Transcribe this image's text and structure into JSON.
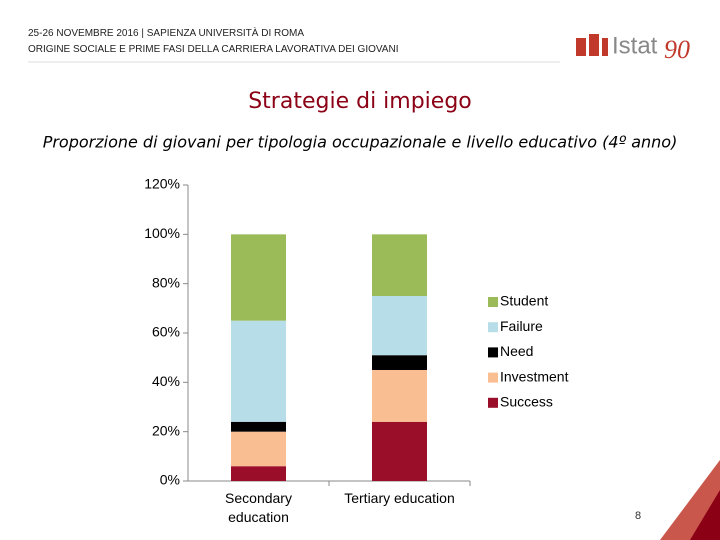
{
  "header": {
    "line1": "25-26 NOVEMBRE 2016 | SAPIENZA UNIVERSITÀ DI ROMA",
    "line2": "ORIGINE SOCIALE E PRIME FASI DELLA CARRIERA LAVORATIVA DEI GIOVANI"
  },
  "logo": {
    "text": "Istat",
    "number": "90"
  },
  "page_number": "8",
  "chart_data": {
    "type": "stacked_bar",
    "title": "Strategie di impiego",
    "subtitle": "Proporzione di giovani per tipologia occupazionale e livello educativo (4º anno)",
    "categories": [
      "Secondary education",
      "Tertiary education"
    ],
    "series": [
      {
        "name": "Success",
        "color": "#9b0e2a",
        "values": [
          6,
          24
        ]
      },
      {
        "name": "Investment",
        "color": "#f9bf92",
        "values": [
          14,
          21
        ]
      },
      {
        "name": "Need",
        "color": "#000000",
        "values": [
          4,
          6
        ]
      },
      {
        "name": "Failure",
        "color": "#b7dde8",
        "values": [
          41,
          24
        ]
      },
      {
        "name": "Student",
        "color": "#9bbb59",
        "values": [
          35,
          25
        ]
      }
    ],
    "ylim": [
      0,
      120
    ],
    "yticks": [
      {
        "value": 0,
        "label": "0%"
      },
      {
        "value": 20,
        "label": "20%"
      },
      {
        "value": 40,
        "label": "40%"
      },
      {
        "value": 60,
        "label": "60%"
      },
      {
        "value": 80,
        "label": "80%"
      },
      {
        "value": 100,
        "label": "100%"
      },
      {
        "value": 120,
        "label": "120%"
      }
    ],
    "legend": "right"
  }
}
